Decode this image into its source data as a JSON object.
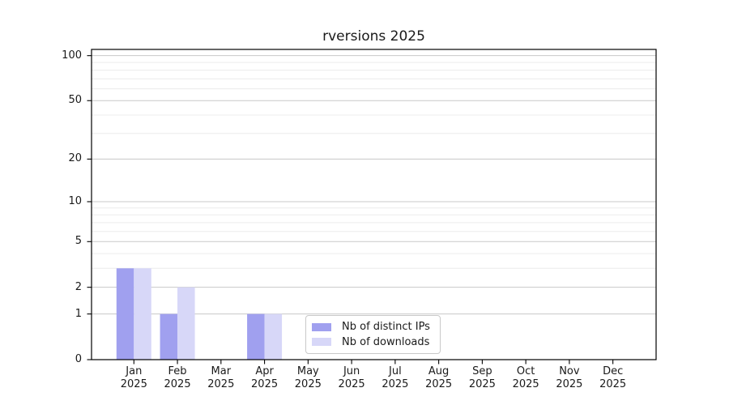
{
  "chart_data": {
    "type": "bar",
    "title": "rversions 2025",
    "xlabel": "",
    "ylabel": "",
    "categories": [
      "Jan",
      "Feb",
      "Mar",
      "Apr",
      "May",
      "Jun",
      "Jul",
      "Aug",
      "Sep",
      "Oct",
      "Nov",
      "Dec"
    ],
    "x_year_label": "2025",
    "series": [
      {
        "name": "Nb of distinct IPs",
        "color": "#a0a0ef",
        "values": [
          3,
          1,
          0,
          1,
          0,
          0,
          0,
          0,
          0,
          0,
          0,
          0
        ]
      },
      {
        "name": "Nb of downloads",
        "color": "#d7d7f8",
        "values": [
          3,
          2,
          0,
          1,
          0,
          0,
          0,
          0,
          0,
          0,
          0,
          0
        ]
      }
    ],
    "y_scale": "log1p",
    "y_major_ticks": [
      0,
      1,
      2,
      5,
      10,
      20,
      50,
      100
    ],
    "y_minor_ticks": [
      3,
      4,
      6,
      7,
      8,
      9,
      30,
      40,
      60,
      70,
      80,
      90
    ],
    "ylim": [
      0,
      110
    ],
    "grid": "horizontal",
    "legend_position": "lower center inside axes",
    "colors": {
      "background": "#ffffff",
      "spine": "#000000",
      "grid_major": "#c8c8c8",
      "grid_minor": "#ececec",
      "tick": "#000000",
      "text": "#1a1a1a",
      "legend_border": "#c9c9c9"
    }
  }
}
